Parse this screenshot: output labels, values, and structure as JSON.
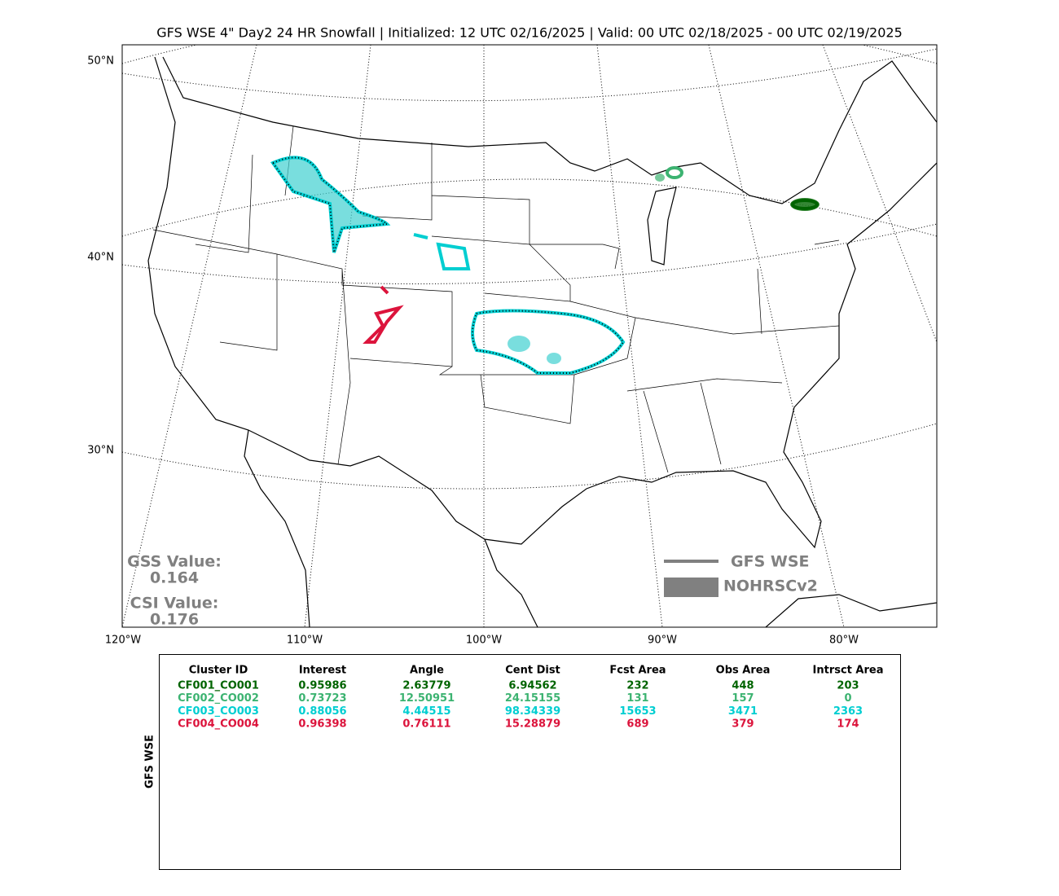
{
  "title": "GFS WSE 4\" Day2 24 HR Snowfall | Initialized: 12 UTC 02/16/2025 | Valid: 00 UTC 02/18/2025 - 00 UTC 02/19/2025",
  "map": {
    "lat_labels": [
      "50°N",
      "40°N",
      "30°N"
    ],
    "lon_labels": [
      "120°W",
      "110°W",
      "100°W",
      "90°W",
      "80°W"
    ],
    "scores": [
      {
        "label": "GSS Value:",
        "value": "0.164"
      },
      {
        "label": "CSI Value:",
        "value": "0.176"
      }
    ],
    "legend": [
      "GFS WSE",
      "NOHRSCv2"
    ]
  },
  "table": {
    "side_label": "GFS WSE",
    "columns": [
      "Cluster ID",
      "Interest",
      "Angle",
      "Cent Dist",
      "Fcst Area",
      "Obs Area",
      "Intrsct Area"
    ],
    "row_colors": [
      "#006400",
      "#3cb371",
      "#00ced1",
      "#dc143c"
    ],
    "rows": [
      [
        "CF001_CO001",
        "0.95986",
        "2.63779",
        "6.94562",
        "232",
        "448",
        "203"
      ],
      [
        "CF002_CO002",
        "0.73723",
        "12.50951",
        "24.15155",
        "131",
        "157",
        "0"
      ],
      [
        "CF003_CO003",
        "0.88056",
        "4.44515",
        "98.34339",
        "15653",
        "3471",
        "2363"
      ],
      [
        "CF004_CO004",
        "0.96398",
        "0.76111",
        "15.28879",
        "689",
        "379",
        "174"
      ]
    ]
  }
}
